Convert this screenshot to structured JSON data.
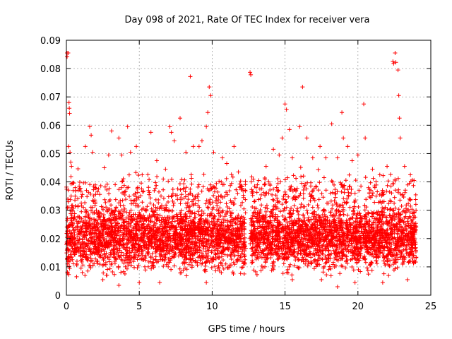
{
  "chart_data": {
    "type": "scatter",
    "title": "Day 098 of 2021, Rate Of TEC Index for receiver vera",
    "xlabel": "GPS time / hours",
    "ylabel": "ROTI / TECUs",
    "xlim": [
      0,
      25
    ],
    "ylim": [
      0,
      0.09
    ],
    "xticks": [
      0,
      5,
      10,
      15,
      20,
      25
    ],
    "xtick_labels": [
      "0",
      "5",
      "10",
      "15",
      "20",
      "25"
    ],
    "yticks": [
      0,
      0.01,
      0.02,
      0.03,
      0.04,
      0.05,
      0.06,
      0.07,
      0.08,
      0.09
    ],
    "ytick_labels": [
      "0",
      "0.01",
      "0.02",
      "0.03",
      "0.04",
      "0.05",
      "0.06",
      "0.07",
      "0.08",
      "0.09"
    ],
    "grid": true,
    "marker": "plus",
    "marker_color": "#ff0000",
    "data_gap_hours": [
      12.3,
      12.6
    ],
    "series": [
      {
        "points": [
          [
            0.05,
            0.0855
          ],
          [
            0.05,
            0.0842
          ],
          [
            0.12,
            0.0855
          ],
          [
            0.2,
            0.066
          ],
          [
            0.22,
            0.0642
          ],
          [
            0.18,
            0.068
          ],
          [
            0.15,
            0.0525
          ],
          [
            0.25,
            0.0505
          ],
          [
            0.3,
            0.047
          ],
          [
            0.35,
            0.0455
          ],
          [
            0.12,
            0.033
          ],
          [
            0.4,
            0.0395
          ],
          [
            0.6,
            0.038
          ],
          [
            0.9,
            0.0375
          ],
          [
            1.3,
            0.0525
          ],
          [
            1.6,
            0.0595
          ],
          [
            1.7,
            0.0565
          ],
          [
            1.8,
            0.0505
          ],
          [
            2.2,
            0.0375
          ],
          [
            2.6,
            0.045
          ],
          [
            2.9,
            0.0495
          ],
          [
            3.1,
            0.058
          ],
          [
            3.6,
            0.0555
          ],
          [
            3.8,
            0.0495
          ],
          [
            4.2,
            0.0595
          ],
          [
            4.4,
            0.0505
          ],
          [
            4.8,
            0.0525
          ],
          [
            5.2,
            0.0425
          ],
          [
            5.8,
            0.0575
          ],
          [
            6.2,
            0.0475
          ],
          [
            6.8,
            0.0445
          ],
          [
            7.1,
            0.0595
          ],
          [
            7.2,
            0.0575
          ],
          [
            7.4,
            0.0545
          ],
          [
            7.8,
            0.0625
          ],
          [
            8.2,
            0.0505
          ],
          [
            8.5,
            0.0772
          ],
          [
            8.7,
            0.0525
          ],
          [
            9.1,
            0.0525
          ],
          [
            9.3,
            0.0545
          ],
          [
            9.6,
            0.0595
          ],
          [
            9.7,
            0.0645
          ],
          [
            9.8,
            0.0735
          ],
          [
            9.9,
            0.0705
          ],
          [
            10.1,
            0.0505
          ],
          [
            10.7,
            0.0485
          ],
          [
            11.0,
            0.0465
          ],
          [
            11.5,
            0.0525
          ],
          [
            11.8,
            0.0435
          ],
          [
            12.0,
            0.0385
          ],
          [
            12.6,
            0.0787
          ],
          [
            12.65,
            0.0778
          ],
          [
            12.8,
            0.0365
          ],
          [
            13.2,
            0.0405
          ],
          [
            13.7,
            0.0455
          ],
          [
            14.2,
            0.0515
          ],
          [
            14.6,
            0.0495
          ],
          [
            14.8,
            0.0555
          ],
          [
            15.0,
            0.0675
          ],
          [
            15.1,
            0.0655
          ],
          [
            15.3,
            0.0585
          ],
          [
            15.5,
            0.0485
          ],
          [
            16.0,
            0.0595
          ],
          [
            16.2,
            0.0735
          ],
          [
            16.5,
            0.0555
          ],
          [
            16.9,
            0.0485
          ],
          [
            17.4,
            0.0525
          ],
          [
            17.8,
            0.0485
          ],
          [
            18.2,
            0.0605
          ],
          [
            18.6,
            0.0485
          ],
          [
            18.9,
            0.0645
          ],
          [
            19.0,
            0.0555
          ],
          [
            19.3,
            0.0525
          ],
          [
            19.6,
            0.0475
          ],
          [
            20.0,
            0.0495
          ],
          [
            20.4,
            0.0675
          ],
          [
            20.5,
            0.0555
          ],
          [
            21.0,
            0.0445
          ],
          [
            21.5,
            0.0425
          ],
          [
            22.0,
            0.0455
          ],
          [
            22.4,
            0.0825
          ],
          [
            22.45,
            0.0818
          ],
          [
            22.55,
            0.0855
          ],
          [
            22.6,
            0.0822
          ],
          [
            22.75,
            0.0795
          ],
          [
            22.8,
            0.0705
          ],
          [
            22.85,
            0.0625
          ],
          [
            22.9,
            0.0555
          ],
          [
            23.2,
            0.0455
          ],
          [
            23.6,
            0.0425
          ],
          [
            23.85,
            0.0405
          ],
          [
            18.6,
            0.003
          ],
          [
            19.8,
            0.0045
          ],
          [
            3.6,
            0.0035
          ],
          [
            6.4,
            0.0045
          ],
          [
            21.7,
            0.0045
          ],
          [
            9.6,
            0.0045
          ],
          [
            15.5,
            0.0055
          ],
          [
            0.7,
            0.0065
          ],
          [
            12.2,
            0.0075
          ],
          [
            17.5,
            0.0055
          ],
          [
            2.5,
            0.0055
          ],
          [
            5.0,
            0.0045
          ],
          [
            23.4,
            0.0055
          ]
        ]
      }
    ],
    "cloud_regions": [
      {
        "x_range": [
          0.0,
          12.3
        ],
        "y_range": [
          0.005,
          0.036
        ],
        "density": 2400
      },
      {
        "x_range": [
          12.6,
          24.0
        ],
        "y_range": [
          0.005,
          0.036
        ],
        "density": 2300
      },
      {
        "x_range": [
          0.0,
          24.0
        ],
        "y_range": [
          0.025,
          0.046
        ],
        "density": 550
      }
    ]
  }
}
